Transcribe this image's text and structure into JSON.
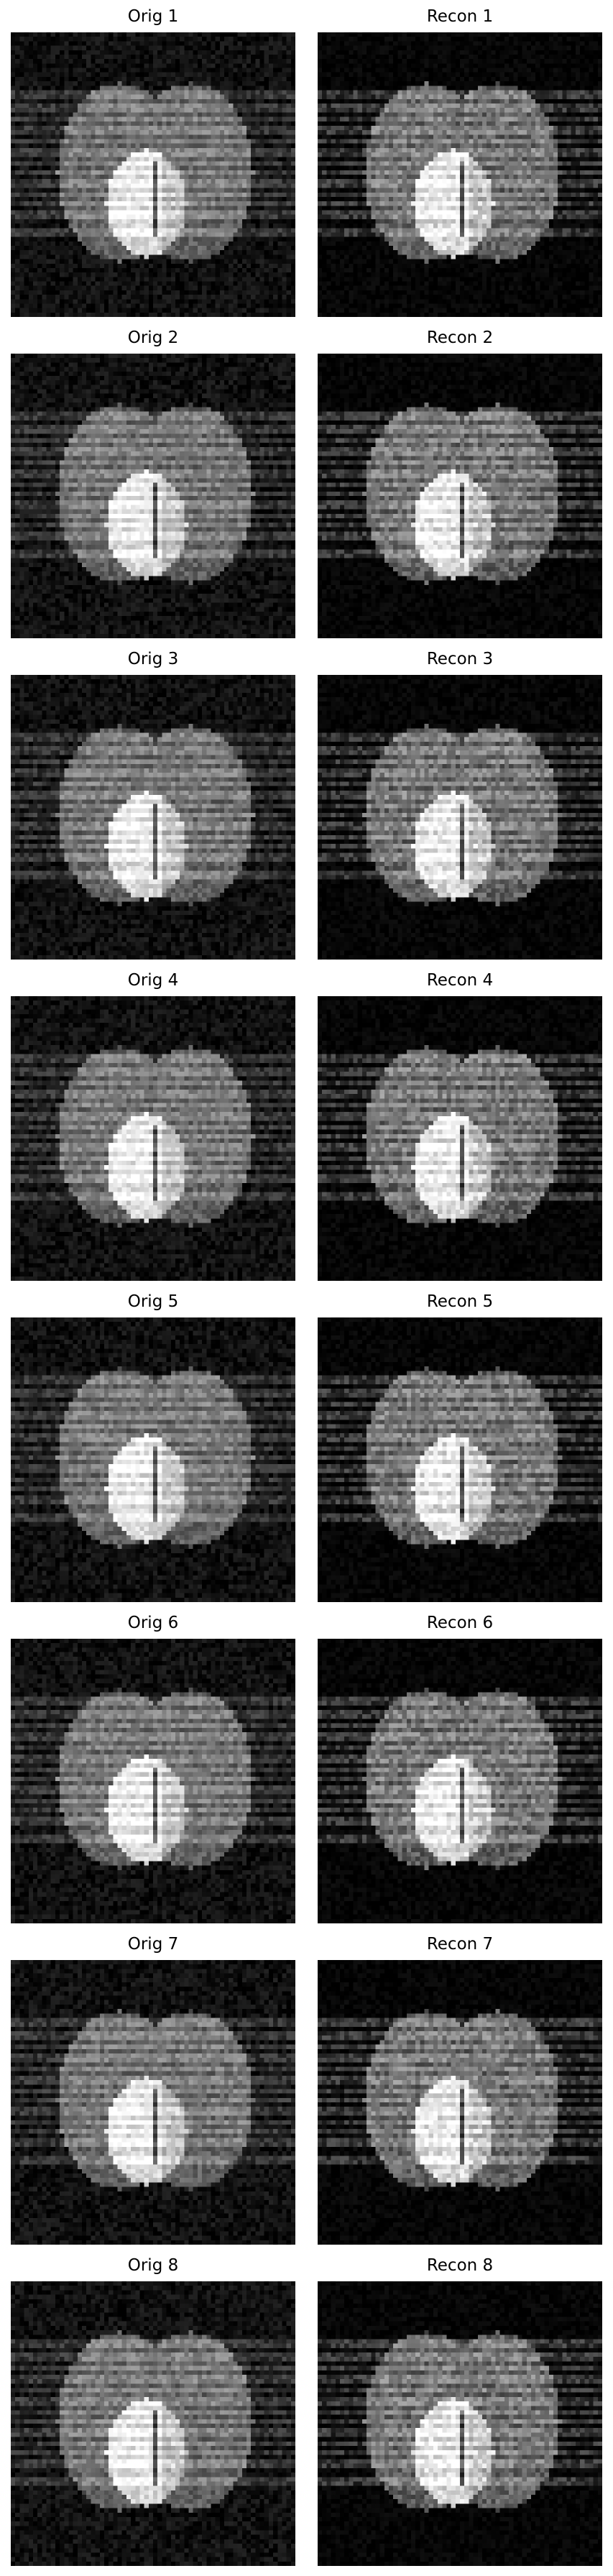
{
  "figure": {
    "rows": [
      {
        "orig_title": "Orig 1",
        "recon_title": "Recon 1"
      },
      {
        "orig_title": "Orig 2",
        "recon_title": "Recon 2"
      },
      {
        "orig_title": "Orig 3",
        "recon_title": "Recon 3"
      },
      {
        "orig_title": "Orig 4",
        "recon_title": "Recon 4"
      },
      {
        "orig_title": "Orig 5",
        "recon_title": "Recon 5"
      },
      {
        "orig_title": "Orig 6",
        "recon_title": "Recon 6"
      },
      {
        "orig_title": "Orig 7",
        "recon_title": "Recon 7"
      },
      {
        "orig_title": "Orig 8",
        "recon_title": "Recon 8"
      }
    ],
    "image_style": "grayscale phantom: two ellipses with bright inner region, horizontal stripe artifacts"
  }
}
